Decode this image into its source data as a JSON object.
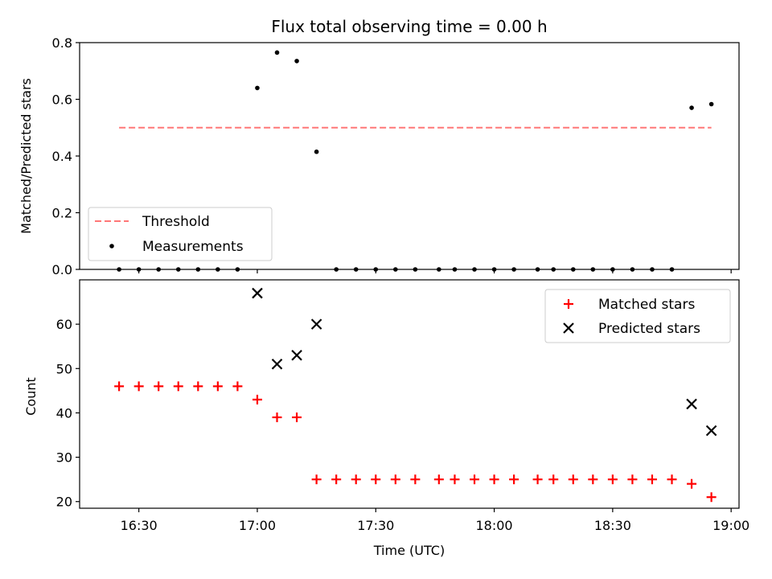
{
  "chart_data": [
    {
      "type": "scatter",
      "title": "Flux total observing time = 0.00 h",
      "xlabel": "",
      "ylabel": "Matched/Predicted stars",
      "ylim": [
        0,
        0.8
      ],
      "yticks": [
        "0.0",
        "0.2",
        "0.4",
        "0.6",
        "0.8"
      ],
      "legend_position": "lower-left",
      "threshold": {
        "name": "Threshold",
        "value": 0.5,
        "x_start": "16:25",
        "x_end": "18:55",
        "color": "#ff7777"
      },
      "series": [
        {
          "name": "Measurements",
          "color": "#000000",
          "points": [
            [
              "16:25",
              0
            ],
            [
              "16:30",
              0
            ],
            [
              "16:35",
              0
            ],
            [
              "16:40",
              0
            ],
            [
              "16:45",
              0
            ],
            [
              "16:50",
              0
            ],
            [
              "16:55",
              0
            ],
            [
              "17:00",
              0.64
            ],
            [
              "17:05",
              0.765
            ],
            [
              "17:10",
              0.735
            ],
            [
              "17:15",
              0.415
            ],
            [
              "17:20",
              0
            ],
            [
              "17:25",
              0
            ],
            [
              "17:30",
              0
            ],
            [
              "17:35",
              0
            ],
            [
              "17:40",
              0
            ],
            [
              "17:46",
              0
            ],
            [
              "17:50",
              0
            ],
            [
              "17:55",
              0
            ],
            [
              "18:00",
              0
            ],
            [
              "18:05",
              0
            ],
            [
              "18:11",
              0
            ],
            [
              "18:15",
              0
            ],
            [
              "18:20",
              0
            ],
            [
              "18:25",
              0
            ],
            [
              "18:30",
              0
            ],
            [
              "18:35",
              0
            ],
            [
              "18:40",
              0
            ],
            [
              "18:45",
              0
            ],
            [
              "18:50",
              0.57
            ],
            [
              "18:55",
              0.583
            ]
          ]
        }
      ]
    },
    {
      "type": "scatter",
      "title": "",
      "xlabel": "Time (UTC)",
      "ylabel": "Count",
      "xlim": [
        "16:15",
        "19:02"
      ],
      "xticks": [
        "16:30",
        "17:00",
        "17:30",
        "18:00",
        "18:30",
        "19:00"
      ],
      "ylim": [
        18.5,
        70
      ],
      "yticks": [
        20,
        30,
        40,
        50,
        60
      ],
      "legend_position": "top-right",
      "series": [
        {
          "name": "Matched stars",
          "marker": "plus",
          "color": "#ff0000",
          "points": [
            [
              "16:25",
              46
            ],
            [
              "16:30",
              46
            ],
            [
              "16:35",
              46
            ],
            [
              "16:40",
              46
            ],
            [
              "16:45",
              46
            ],
            [
              "16:50",
              46
            ],
            [
              "16:55",
              46
            ],
            [
              "17:00",
              43
            ],
            [
              "17:05",
              39
            ],
            [
              "17:10",
              39
            ],
            [
              "17:15",
              25
            ],
            [
              "17:20",
              25
            ],
            [
              "17:25",
              25
            ],
            [
              "17:30",
              25
            ],
            [
              "17:35",
              25
            ],
            [
              "17:40",
              25
            ],
            [
              "17:46",
              25
            ],
            [
              "17:50",
              25
            ],
            [
              "17:55",
              25
            ],
            [
              "18:00",
              25
            ],
            [
              "18:05",
              25
            ],
            [
              "18:11",
              25
            ],
            [
              "18:15",
              25
            ],
            [
              "18:20",
              25
            ],
            [
              "18:25",
              25
            ],
            [
              "18:30",
              25
            ],
            [
              "18:35",
              25
            ],
            [
              "18:40",
              25
            ],
            [
              "18:45",
              25
            ],
            [
              "18:50",
              24
            ],
            [
              "18:55",
              21
            ]
          ]
        },
        {
          "name": "Predicted stars",
          "marker": "x",
          "color": "#000000",
          "points": [
            [
              "17:00",
              67
            ],
            [
              "17:05",
              51
            ],
            [
              "17:10",
              53
            ],
            [
              "17:15",
              60
            ],
            [
              "18:50",
              42
            ],
            [
              "18:55",
              36
            ]
          ]
        }
      ]
    }
  ]
}
